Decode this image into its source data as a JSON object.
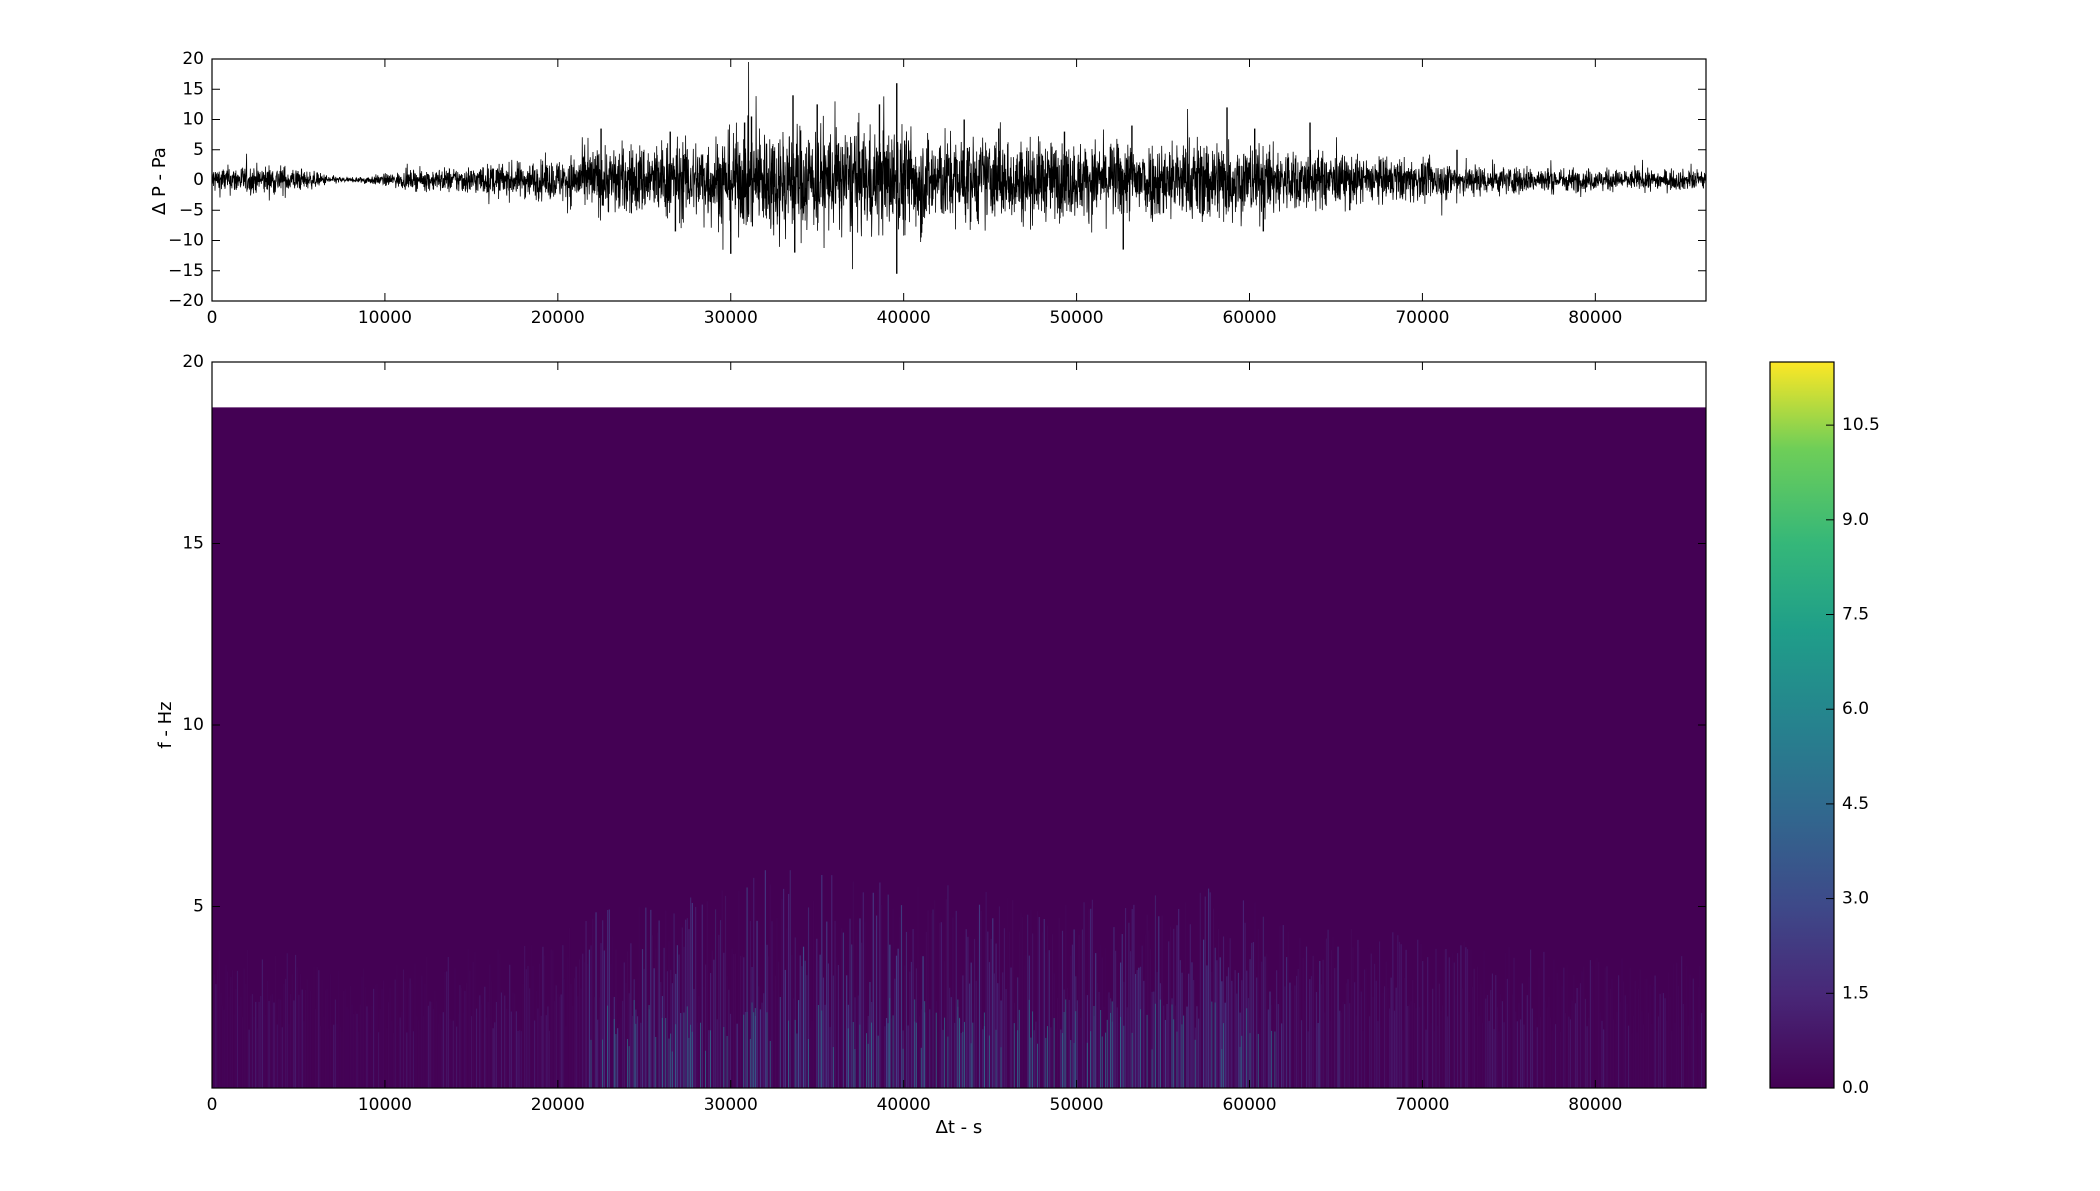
{
  "chart_data": [
    {
      "type": "line",
      "ylabel": "∆ P - Pa",
      "xlim": [
        0,
        86400
      ],
      "ylim": [
        -20,
        20
      ],
      "xticks": [
        0,
        10000,
        20000,
        30000,
        40000,
        50000,
        60000,
        70000,
        80000
      ],
      "xtick_labels": [
        "0",
        "10000",
        "20000",
        "30000",
        "40000",
        "50000",
        "60000",
        "70000",
        "80000"
      ],
      "yticks": [
        -20,
        -15,
        -10,
        -5,
        0,
        5,
        10,
        15,
        20
      ],
      "ytick_labels": [
        "−20",
        "−15",
        "−10",
        "−5",
        "0",
        "5",
        "10",
        "15",
        "20"
      ],
      "line_color": "#000000",
      "envelope": {
        "x": [
          0,
          4000,
          7000,
          8000,
          9000,
          12000,
          16000,
          20000,
          22000,
          25000,
          28000,
          31000,
          33000,
          35000,
          38000,
          40000,
          43000,
          46000,
          50000,
          53000,
          56000,
          58000,
          60000,
          63000,
          66000,
          70000,
          74000,
          78000,
          82000,
          86400
        ],
        "amplitude": [
          2.0,
          2.2,
          0.6,
          0.3,
          0.6,
          1.5,
          2.3,
          3.0,
          4.8,
          5.5,
          6.0,
          7.5,
          8.5,
          8.0,
          7.5,
          8.0,
          6.5,
          6.0,
          5.5,
          5.8,
          6.0,
          6.5,
          5.5,
          4.5,
          3.5,
          3.0,
          2.2,
          1.8,
          1.5,
          1.5
        ]
      },
      "spikes": [
        {
          "x": 22500,
          "y": 8.5
        },
        {
          "x": 26500,
          "y": 8.0
        },
        {
          "x": 26800,
          "y": -8.5
        },
        {
          "x": 30000,
          "y": -12.2
        },
        {
          "x": 30800,
          "y": 9.5
        },
        {
          "x": 31200,
          "y": 10.5
        },
        {
          "x": 33600,
          "y": 14.0
        },
        {
          "x": 33700,
          "y": -12.0
        },
        {
          "x": 35000,
          "y": 12.5
        },
        {
          "x": 38600,
          "y": 12.5
        },
        {
          "x": 39600,
          "y": 16.0
        },
        {
          "x": 39600,
          "y": -15.5
        },
        {
          "x": 41000,
          "y": -9.5
        },
        {
          "x": 43500,
          "y": 10.0
        },
        {
          "x": 45500,
          "y": 8.5
        },
        {
          "x": 49300,
          "y": 8.0
        },
        {
          "x": 52700,
          "y": -11.5
        },
        {
          "x": 53200,
          "y": 9.0
        },
        {
          "x": 58700,
          "y": 12.0
        },
        {
          "x": 60300,
          "y": 8.5
        },
        {
          "x": 60800,
          "y": -8.5
        },
        {
          "x": 63500,
          "y": 9.5
        },
        {
          "x": 65800,
          "y": -5.0
        },
        {
          "x": 72000,
          "y": 5.0
        }
      ]
    },
    {
      "type": "heatmap",
      "xlabel": "∆t - s",
      "ylabel": "f - Hz",
      "xlim": [
        0,
        86400
      ],
      "ylim": [
        0,
        20
      ],
      "data_ymax": 18.75,
      "xticks": [
        0,
        10000,
        20000,
        30000,
        40000,
        50000,
        60000,
        70000,
        80000
      ],
      "xtick_labels": [
        "0",
        "10000",
        "20000",
        "30000",
        "40000",
        "50000",
        "60000",
        "70000",
        "80000"
      ],
      "yticks": [
        5,
        10,
        15,
        20
      ],
      "ytick_labels": [
        "5",
        "10",
        "15",
        "20"
      ],
      "colormap": "viridis",
      "colorbar": {
        "vmin": 0,
        "vmax": 11.5,
        "ticks": [
          0.0,
          1.5,
          3.0,
          4.5,
          6.0,
          7.5,
          9.0,
          10.5
        ],
        "tick_labels": [
          "0.0",
          "1.5",
          "3.0",
          "4.5",
          "6.0",
          "7.5",
          "9.0",
          "10.5"
        ]
      }
    }
  ]
}
